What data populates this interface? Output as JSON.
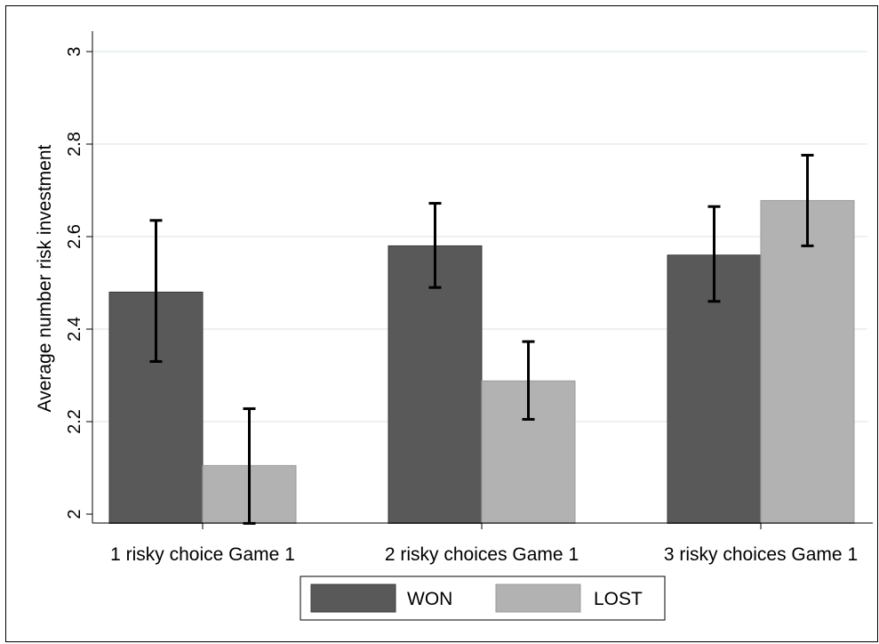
{
  "chart_data": {
    "type": "bar",
    "title": "",
    "xlabel": "",
    "ylabel": "Average number risk investment",
    "ylim": [
      1.98,
      3.0
    ],
    "yticks": [
      2,
      2.2,
      2.4,
      2.6,
      2.8,
      3
    ],
    "ytick_labels": [
      "2",
      "2.2",
      "2.4",
      "2.6",
      "2.8",
      "3"
    ],
    "grid": true,
    "legend_position": "bottom",
    "categories": [
      "1 risky choice Game 1",
      "2 risky choices Game 1",
      "3 risky choices Game 1"
    ],
    "series": [
      {
        "name": "WON",
        "color": "#595959",
        "values": [
          2.48,
          2.58,
          2.56
        ],
        "error_low": [
          2.33,
          2.49,
          2.46
        ],
        "error_high": [
          2.635,
          2.672,
          2.665
        ]
      },
      {
        "name": "LOST",
        "color": "#b2b2b2",
        "values": [
          2.105,
          2.288,
          2.678
        ],
        "error_low": [
          1.98,
          2.205,
          2.58
        ],
        "error_high": [
          2.228,
          2.373,
          2.776
        ]
      }
    ]
  }
}
